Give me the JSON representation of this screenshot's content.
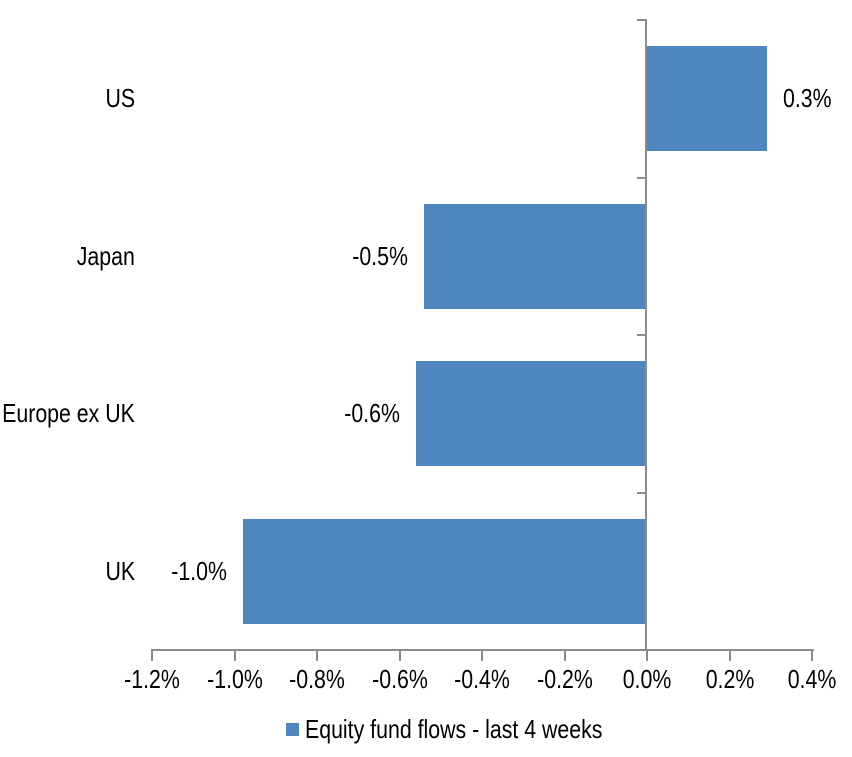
{
  "chart_data": {
    "type": "bar",
    "orientation": "horizontal",
    "title": "",
    "xlabel": "",
    "ylabel": "",
    "categories": [
      "US",
      "Japan",
      "Europe ex UK",
      "UK"
    ],
    "series": [
      {
        "name": "Equity fund flows - last 4 weeks",
        "values": [
          0.3,
          -0.5,
          -0.6,
          -1.0
        ],
        "values_precise": [
          0.29,
          -0.54,
          -0.56,
          -0.98
        ],
        "data_labels": [
          "0.3%",
          "-0.5%",
          "-0.6%",
          "-1.0%"
        ],
        "color": "#4E86BD"
      }
    ],
    "x_axis": {
      "range": [
        -1.2,
        0.4
      ],
      "ticks": [
        -1.2,
        -1.0,
        -0.8,
        -0.6,
        -0.4,
        -0.2,
        0.0,
        0.2,
        0.4
      ],
      "tick_labels": [
        "-1.2%",
        "-1.0%",
        "-0.8%",
        "-0.6%",
        "-0.4%",
        "-0.2%",
        "0.0%",
        "0.2%",
        "0.4%"
      ],
      "format": "percent"
    },
    "grid": false,
    "legend": {
      "position": "bottom",
      "entries": [
        "Equity fund flows - last 4 weeks"
      ]
    }
  },
  "colors": {
    "bar": "#4E86BD",
    "axis": "#8C8C8C",
    "text": "#000000",
    "background": "#FFFFFF"
  }
}
